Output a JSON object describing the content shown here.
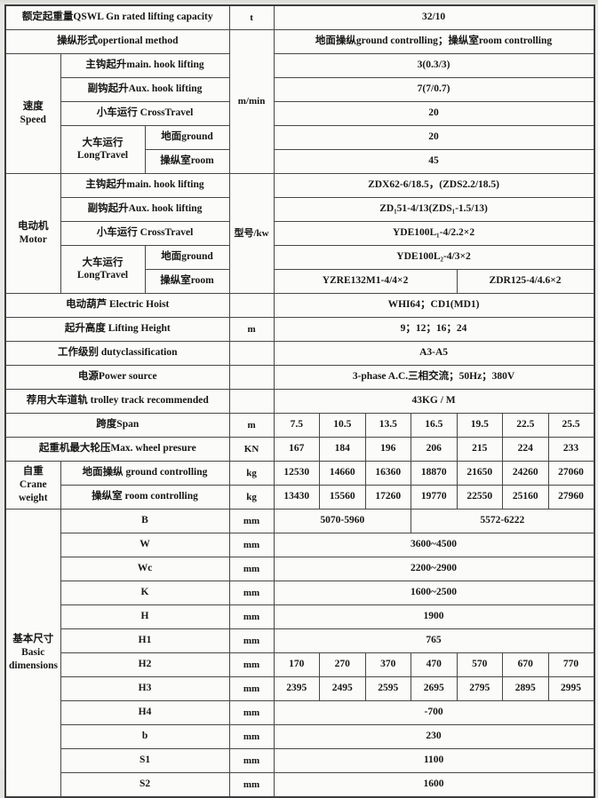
{
  "document": {
    "kind": "crane-specification-table",
    "product": "QSWL 32/10 t overhead crane data sheet"
  },
  "colors": {
    "paper": "#e9e9e6",
    "table_background": "#fbfbf9",
    "border": "#474747",
    "text": "#161616"
  },
  "table": {
    "rows": [
      {
        "cells": [
          {
            "t": "额定起重量QSWL Gn rated lifting capacity",
            "cs": 3,
            "cls": "lbl",
            "n": "rated-capacity-label"
          },
          {
            "t": "t",
            "cls": "unit"
          },
          {
            "t": "32/10",
            "cs": 7,
            "n": "rated-capacity-value"
          }
        ]
      },
      {
        "cells": [
          {
            "t": "操纵形式opertional method",
            "cs": 3,
            "cls": "lbl",
            "n": "operational-method-label"
          },
          {
            "t": "m/min",
            "rs": 6,
            "cls": "unit",
            "n": "speed-unit-cell"
          },
          {
            "t": "地面操纵ground controlling；操纵室room controlling",
            "cs": 7,
            "n": "operational-method-value"
          }
        ]
      },
      {
        "cells": [
          {
            "t": "速度\nSpeed",
            "rs": 5,
            "cls": "sec",
            "n": "speed-section-header"
          },
          {
            "t": "主钩起升main. hook lifting",
            "cs": 2,
            "cls": "lbl"
          },
          {
            "t": "3(0.3/3)",
            "cs": 7
          }
        ]
      },
      {
        "cells": [
          {
            "t": "副钩起升Aux. hook lifting",
            "cs": 2,
            "cls": "lbl"
          },
          {
            "t": "7(7/0.7)",
            "cs": 7
          }
        ]
      },
      {
        "cells": [
          {
            "t": "小车运行 CrossTravel",
            "cs": 2,
            "cls": "lbl"
          },
          {
            "t": "20",
            "cs": 7
          }
        ]
      },
      {
        "cells": [
          {
            "t": "大车运行\nLongTravel",
            "rs": 2,
            "cls": "lbl",
            "n": "long-travel-label"
          },
          {
            "t": "地面ground",
            "cls": "lbl"
          },
          {
            "t": "20",
            "cs": 7
          }
        ]
      },
      {
        "cells": [
          {
            "t": "操纵室room",
            "cls": "lbl"
          },
          {
            "t": "45",
            "cs": 7
          }
        ]
      },
      {
        "cells": [
          {
            "t": "电动机\nMotor",
            "rs": 5,
            "cls": "sec",
            "n": "motor-section-header"
          },
          {
            "t": "主钩起升main. hook lifting",
            "cs": 2,
            "cls": "lbl"
          },
          {
            "t": "型号/kw",
            "rs": 5,
            "cls": "unit",
            "n": "motor-unit-cell"
          },
          {
            "t": "ZDX62-6/18.5，(ZDS2.2/18.5)",
            "cs": 7
          }
        ]
      },
      {
        "cells": [
          {
            "t": "副钩起升Aux. hook lifting",
            "cs": 2,
            "cls": "lbl"
          },
          {
            "t": "ZD₁51-4/13(ZDS₁-1.5/13)",
            "cs": 7
          }
        ]
      },
      {
        "cells": [
          {
            "t": "小车运行 CrossTravel",
            "cs": 2,
            "cls": "lbl"
          },
          {
            "t": "YDE100L₁-4/2.2×2",
            "cs": 7
          }
        ]
      },
      {
        "cells": [
          {
            "t": "大车运行\nLongTravel",
            "rs": 2,
            "cls": "lbl",
            "n": "long-travel-label"
          },
          {
            "t": "地面ground",
            "cls": "lbl"
          },
          {
            "t": "YDE100L₂-4/3×2",
            "cs": 7
          }
        ]
      },
      {
        "cells": [
          {
            "t": "操纵室room",
            "cls": "lbl"
          },
          {
            "t": "YZRE132M1-4/4×2",
            "cs": 4
          },
          {
            "t": "ZDR125-4/4.6×2",
            "cs": 3
          }
        ]
      },
      {
        "cells": [
          {
            "t": "电动葫芦 Electric Hoist",
            "cs": 3,
            "cls": "lbl",
            "n": "electric-hoist-label"
          },
          {
            "t": "",
            "cls": "unit"
          },
          {
            "t": "WHI64；CD1(MD1)",
            "cs": 7,
            "n": "electric-hoist-value"
          }
        ]
      },
      {
        "cells": [
          {
            "t": "起升高度 Lifting Height",
            "cs": 3,
            "cls": "lbl",
            "n": "lifting-height-label"
          },
          {
            "t": "m",
            "cls": "unit"
          },
          {
            "t": "9；12；16；24",
            "cs": 7,
            "n": "lifting-height-value"
          }
        ]
      },
      {
        "cells": [
          {
            "t": "工作级别 dutyclassification",
            "cs": 3,
            "cls": "lbl",
            "n": "duty-classification-label"
          },
          {
            "t": "",
            "cls": "unit"
          },
          {
            "t": "A3-A5",
            "cs": 7,
            "n": "duty-classification-value"
          }
        ]
      },
      {
        "cells": [
          {
            "t": "电源Power source",
            "cs": 3,
            "cls": "lbl",
            "n": "power-source-label"
          },
          {
            "t": "",
            "cls": "unit"
          },
          {
            "t": "3-phase A.C.三相交流；50Hz；380V",
            "cs": 7,
            "n": "power-source-value"
          }
        ]
      },
      {
        "cells": [
          {
            "t": "荐用大车道轨 trolley track recommended",
            "cs": 3,
            "cls": "lbl",
            "n": "trolley-track-label"
          },
          {
            "t": "",
            "cls": "unit"
          },
          {
            "t": "43KG / M",
            "cs": 7,
            "n": "trolley-track-value"
          }
        ]
      },
      {
        "cells": [
          {
            "t": "跨度Span",
            "cs": 3,
            "cls": "lbl",
            "n": "span-label"
          },
          {
            "t": "m",
            "cls": "unit"
          },
          {
            "t": "7.5"
          },
          {
            "t": "10.5"
          },
          {
            "t": "13.5"
          },
          {
            "t": "16.5"
          },
          {
            "t": "19.5"
          },
          {
            "t": "22.5"
          },
          {
            "t": "25.5"
          }
        ]
      },
      {
        "cells": [
          {
            "t": "起重机最大轮压Max. wheel presure",
            "cs": 3,
            "cls": "lbl",
            "n": "max-wheel-pressure-label"
          },
          {
            "t": "KN",
            "cls": "unit"
          },
          {
            "t": "167"
          },
          {
            "t": "184"
          },
          {
            "t": "196"
          },
          {
            "t": "206"
          },
          {
            "t": "215"
          },
          {
            "t": "224"
          },
          {
            "t": "233"
          }
        ]
      },
      {
        "cells": [
          {
            "t": "自重\nCrane\nweight",
            "rs": 2,
            "cls": "sec",
            "n": "crane-weight-section-header"
          },
          {
            "t": "地面操纵 ground controlling",
            "cs": 2,
            "cls": "lbl"
          },
          {
            "t": "kg",
            "cls": "unit"
          },
          {
            "t": "12530"
          },
          {
            "t": "14660"
          },
          {
            "t": "16360"
          },
          {
            "t": "18870"
          },
          {
            "t": "21650"
          },
          {
            "t": "24260"
          },
          {
            "t": "27060"
          }
        ]
      },
      {
        "cells": [
          {
            "t": "操纵室 room controlling",
            "cs": 2,
            "cls": "lbl"
          },
          {
            "t": "kg",
            "cls": "unit"
          },
          {
            "t": "13430"
          },
          {
            "t": "15560"
          },
          {
            "t": "17260"
          },
          {
            "t": "19770"
          },
          {
            "t": "22550"
          },
          {
            "t": "25160"
          },
          {
            "t": "27960"
          }
        ]
      },
      {
        "cells": [
          {
            "t": "基本尺寸\nBasic\ndimensions",
            "rs": 12,
            "cls": "sec",
            "n": "basic-dimensions-section-header"
          },
          {
            "t": "B",
            "cs": 2,
            "cls": "lbl"
          },
          {
            "t": "mm",
            "cls": "unit"
          },
          {
            "t": "5070-5960",
            "cs": 3
          },
          {
            "t": "5572-6222",
            "cs": 4
          }
        ]
      },
      {
        "cells": [
          {
            "t": "W",
            "cs": 2,
            "cls": "lbl"
          },
          {
            "t": "mm",
            "cls": "unit"
          },
          {
            "t": "3600~4500",
            "cs": 7
          }
        ]
      },
      {
        "cells": [
          {
            "t": "Wc",
            "cs": 2,
            "cls": "lbl"
          },
          {
            "t": "mm",
            "cls": "unit"
          },
          {
            "t": "2200~2900",
            "cs": 7
          }
        ]
      },
      {
        "cells": [
          {
            "t": "K",
            "cs": 2,
            "cls": "lbl"
          },
          {
            "t": "mm",
            "cls": "unit"
          },
          {
            "t": "1600~2500",
            "cs": 7
          }
        ]
      },
      {
        "cells": [
          {
            "t": "H",
            "cs": 2,
            "cls": "lbl"
          },
          {
            "t": "mm",
            "cls": "unit"
          },
          {
            "t": "1900",
            "cs": 7
          }
        ]
      },
      {
        "cells": [
          {
            "t": "H1",
            "cs": 2,
            "cls": "lbl"
          },
          {
            "t": "mm",
            "cls": "unit"
          },
          {
            "t": "765",
            "cs": 7
          }
        ]
      },
      {
        "cells": [
          {
            "t": "H2",
            "cs": 2,
            "cls": "lbl"
          },
          {
            "t": "mm",
            "cls": "unit"
          },
          {
            "t": "170"
          },
          {
            "t": "270"
          },
          {
            "t": "370"
          },
          {
            "t": "470"
          },
          {
            "t": "570"
          },
          {
            "t": "670"
          },
          {
            "t": "770"
          }
        ]
      },
      {
        "cells": [
          {
            "t": "H3",
            "cs": 2,
            "cls": "lbl"
          },
          {
            "t": "mm",
            "cls": "unit"
          },
          {
            "t": "2395"
          },
          {
            "t": "2495"
          },
          {
            "t": "2595"
          },
          {
            "t": "2695"
          },
          {
            "t": "2795"
          },
          {
            "t": "2895"
          },
          {
            "t": "2995"
          }
        ]
      },
      {
        "cells": [
          {
            "t": "H4",
            "cs": 2,
            "cls": "lbl"
          },
          {
            "t": "mm",
            "cls": "unit"
          },
          {
            "t": "-700",
            "cs": 7
          }
        ]
      },
      {
        "cells": [
          {
            "t": "b",
            "cs": 2,
            "cls": "lbl"
          },
          {
            "t": "mm",
            "cls": "unit"
          },
          {
            "t": "230",
            "cs": 7
          }
        ]
      },
      {
        "cells": [
          {
            "t": "S1",
            "cs": 2,
            "cls": "lbl"
          },
          {
            "t": "mm",
            "cls": "unit"
          },
          {
            "t": "1100",
            "cs": 7
          }
        ]
      },
      {
        "cells": [
          {
            "t": "S2",
            "cs": 2,
            "cls": "lbl"
          },
          {
            "t": "mm",
            "cls": "unit"
          },
          {
            "t": "1600",
            "cs": 7
          }
        ]
      }
    ]
  }
}
